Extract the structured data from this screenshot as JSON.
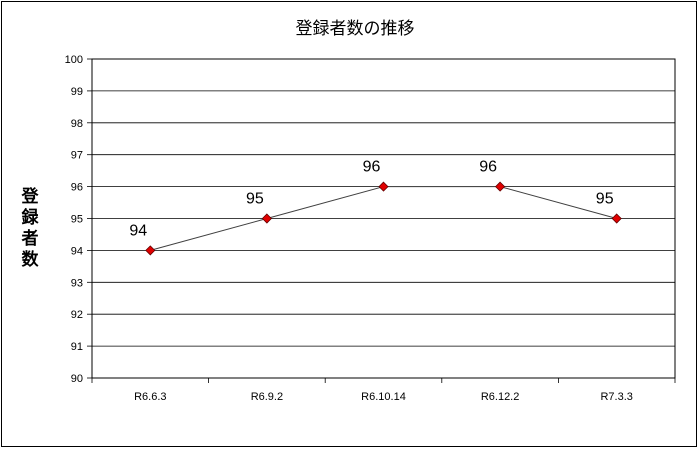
{
  "chart_data": {
    "type": "line",
    "title": "登録者数の推移",
    "xlabel": "",
    "ylabel": "登録者数",
    "categories": [
      "R6.6.3",
      "R6.9.2",
      "R6.10.14",
      "R6.12.2",
      "R7.3.3"
    ],
    "series": [
      {
        "values": [
          94,
          95,
          96,
          96,
          95
        ]
      }
    ],
    "data_labels": [
      "94",
      "95",
      "96",
      "96",
      "95"
    ],
    "ylim": [
      90,
      100
    ],
    "yticks": [
      "90",
      "91",
      "92",
      "93",
      "94",
      "95",
      "96",
      "97",
      "98",
      "99",
      "100"
    ],
    "grid": true,
    "legend": "none",
    "colors": {
      "line": "#404040",
      "marker": "#e00000",
      "marker_edge": "#600000",
      "grid": "#000000"
    }
  }
}
